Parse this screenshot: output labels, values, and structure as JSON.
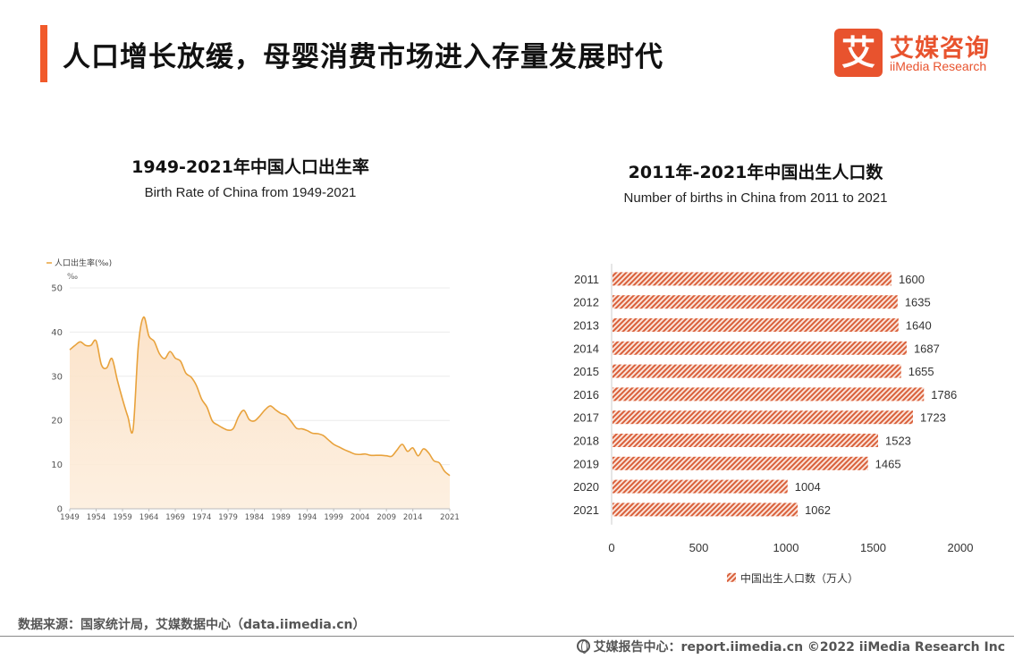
{
  "header": {
    "title": "人口增长放缓，母婴消费市场进入存量发展时代",
    "logo_mark": "艾",
    "logo_cn": "艾媒咨询",
    "logo_en": "iiMedia Research"
  },
  "colors": {
    "accent": "#f15a2b",
    "line": "#e8a23c",
    "bar": "#d9603b"
  },
  "chart_data": [
    {
      "type": "area",
      "title": "1949-2021年中国人口出生率",
      "subtitle": "Birth Rate of China from 1949-2021",
      "legend": "人口出生率(‰)",
      "unit": "‰",
      "ylim": [
        0,
        50
      ],
      "yticks": [
        "0",
        "10",
        "20",
        "30",
        "40",
        "50"
      ],
      "xlim": [
        1949,
        2021
      ],
      "xtick_labels": [
        "1949",
        "1954",
        "1959",
        "1964",
        "1969",
        "1974",
        "1979",
        "1984",
        "1989",
        "1994",
        "1999",
        "2004",
        "2009",
        "2014",
        "2021"
      ],
      "grid": true,
      "x": [
        1949,
        1950,
        1951,
        1952,
        1953,
        1954,
        1955,
        1956,
        1957,
        1958,
        1959,
        1960,
        1961,
        1962,
        1963,
        1964,
        1965,
        1966,
        1967,
        1968,
        1969,
        1970,
        1971,
        1972,
        1973,
        1974,
        1975,
        1976,
        1977,
        1978,
        1979,
        1980,
        1981,
        1982,
        1983,
        1984,
        1985,
        1986,
        1987,
        1988,
        1989,
        1990,
        1991,
        1992,
        1993,
        1994,
        1995,
        1996,
        1997,
        1998,
        1999,
        2000,
        2001,
        2002,
        2003,
        2004,
        2005,
        2006,
        2007,
        2008,
        2009,
        2010,
        2011,
        2012,
        2013,
        2014,
        2015,
        2016,
        2017,
        2018,
        2019,
        2020,
        2021
      ],
      "values": [
        36.0,
        37.0,
        37.8,
        37.0,
        37.0,
        38.0,
        32.6,
        31.9,
        34.0,
        29.2,
        24.8,
        20.9,
        18.0,
        37.0,
        43.4,
        39.1,
        37.9,
        35.1,
        34.0,
        35.6,
        34.1,
        33.4,
        30.7,
        29.8,
        27.9,
        24.8,
        23.0,
        19.9,
        19.0,
        18.3,
        17.8,
        18.2,
        20.9,
        22.3,
        20.2,
        19.9,
        21.0,
        22.4,
        23.3,
        22.4,
        21.6,
        21.1,
        19.7,
        18.2,
        18.1,
        17.7,
        17.1,
        17.0,
        16.6,
        15.6,
        14.6,
        14.0,
        13.4,
        12.9,
        12.4,
        12.3,
        12.4,
        12.1,
        12.1,
        12.1,
        12.0,
        11.9,
        13.3,
        14.6,
        13.0,
        13.8,
        11.99,
        13.57,
        12.64,
        10.86,
        10.41,
        8.52,
        7.52
      ]
    },
    {
      "type": "bar",
      "orientation": "horizontal",
      "title": "2011年-2021年中国出生人口数",
      "subtitle": "Number of births in China from 2011 to 2021",
      "legend": "中国出生人口数（万人）",
      "categories": [
        "2011",
        "2012",
        "2013",
        "2014",
        "2015",
        "2016",
        "2017",
        "2018",
        "2019",
        "2020",
        "2021"
      ],
      "values": [
        1600,
        1635,
        1640,
        1687,
        1655,
        1786,
        1723,
        1523,
        1465,
        1004,
        1062
      ],
      "xlim": [
        0,
        2000
      ],
      "xticks": [
        "0",
        "500",
        "1000",
        "1500",
        "2000"
      ]
    }
  ],
  "footer": {
    "source": "数据来源：国家统计局，艾媒数据中心（data.iimedia.cn）",
    "right": "艾媒报告中心：report.iimedia.cn  ©2022  iiMedia Research  Inc"
  }
}
